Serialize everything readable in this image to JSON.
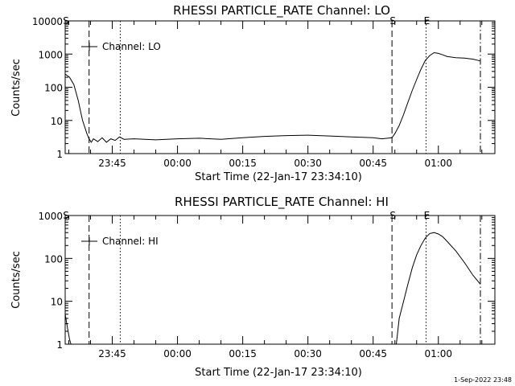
{
  "footer": {
    "timestamp": "1-Sep-2022 23:48"
  },
  "chart_data": [
    {
      "type": "line",
      "title": "RHESSI PARTICLE_RATE Channel: LO",
      "xlabel": "Start Time (22-Jan-17 23:34:10)",
      "ylabel": "Counts/sec",
      "y_scale": "log",
      "ylim": [
        1,
        10000
      ],
      "xlim": [
        "23:34:10",
        "01:13:00"
      ],
      "x_tick_labels": [
        "23:45",
        "00:00",
        "00:15",
        "00:30",
        "00:45",
        "01:00"
      ],
      "y_tick_labels": [
        "1",
        "10",
        "100",
        "1000",
        "10000"
      ],
      "legend": {
        "position": "top-left",
        "entries": [
          "Channel: LO"
        ]
      },
      "markers": [
        {
          "label": "S",
          "time": "23:34:10",
          "style": "dash-dot"
        },
        {
          "label": "",
          "time": "23:39:40",
          "style": "dashed"
        },
        {
          "label": "",
          "time": "23:46:50",
          "style": "dotted"
        },
        {
          "label": "S",
          "time": "00:49:20",
          "style": "dashed"
        },
        {
          "label": "E",
          "time": "00:57:10",
          "style": "dotted"
        },
        {
          "label": "",
          "time": "01:09:40",
          "style": "dash-dot"
        }
      ],
      "series": [
        {
          "name": "Channel: LO",
          "x": [
            "23:34:10",
            "23:35:10",
            "23:36:10",
            "23:37:10",
            "23:38:10",
            "23:39:10",
            "23:39:40",
            "23:40:10",
            "23:40:40",
            "23:41:40",
            "23:42:40",
            "23:43:40",
            "23:44:40",
            "23:45:40",
            "23:46:40",
            "23:47:40",
            "23:50:00",
            "23:55:00",
            "00:00:00",
            "00:05:00",
            "00:10:00",
            "00:15:00",
            "00:20:00",
            "00:25:00",
            "00:30:00",
            "00:35:00",
            "00:40:00",
            "00:45:00",
            "00:47:00",
            "00:49:20",
            "00:50:00",
            "00:51:00",
            "00:52:00",
            "00:53:00",
            "00:54:00",
            "00:55:00",
            "00:56:00",
            "00:57:00",
            "00:58:00",
            "00:59:00",
            "01:00:00",
            "01:01:00",
            "01:02:00",
            "01:04:00",
            "01:06:00",
            "01:08:00",
            "01:09:40"
          ],
          "y": [
            250,
            200,
            120,
            40,
            10,
            4,
            2.8,
            2.2,
            2.8,
            2.3,
            3.0,
            2.2,
            2.8,
            2.5,
            3.2,
            2.7,
            2.8,
            2.6,
            2.8,
            2.9,
            2.7,
            3.0,
            3.3,
            3.5,
            3.6,
            3.4,
            3.2,
            3.0,
            2.8,
            3.0,
            4.0,
            7,
            15,
            35,
            80,
            170,
            350,
            650,
            900,
            1100,
            1050,
            950,
            850,
            780,
            760,
            700,
            620
          ]
        }
      ]
    },
    {
      "type": "line",
      "title": "RHESSI PARTICLE_RATE Channel: HI",
      "xlabel": "Start Time (22-Jan-17 23:34:10)",
      "ylabel": "Counts/sec",
      "y_scale": "log",
      "ylim": [
        1,
        1000
      ],
      "xlim": [
        "23:34:10",
        "01:13:00"
      ],
      "x_tick_labels": [
        "23:45",
        "00:00",
        "00:15",
        "00:30",
        "00:45",
        "01:00"
      ],
      "y_tick_labels": [
        "1",
        "10",
        "100",
        "1000"
      ],
      "legend": {
        "position": "top-left",
        "entries": [
          "Channel: HI"
        ]
      },
      "markers": [
        {
          "label": "S",
          "time": "23:34:10",
          "style": "dash-dot"
        },
        {
          "label": "",
          "time": "23:39:40",
          "style": "dashed"
        },
        {
          "label": "",
          "time": "23:46:50",
          "style": "dotted"
        },
        {
          "label": "S",
          "time": "00:49:20",
          "style": "dashed"
        },
        {
          "label": "E",
          "time": "00:57:10",
          "style": "dotted"
        },
        {
          "label": "",
          "time": "01:09:40",
          "style": "dash-dot"
        }
      ],
      "series": [
        {
          "name": "Channel: HI",
          "segments": [
            {
              "x": [
                "23:34:10",
                "23:34:40",
                "23:35:10",
                "23:35:30"
              ],
              "y": [
                5,
                2.5,
                1.3,
                1
              ]
            },
            {
              "x": [
                "00:50:20",
                "00:51:00",
                "00:52:00",
                "00:53:00",
                "00:54:00",
                "00:55:00",
                "00:56:00",
                "00:57:00",
                "00:58:00",
                "00:59:00",
                "01:00:00",
                "01:01:00",
                "01:02:00",
                "01:04:00",
                "01:06:00",
                "01:08:00",
                "01:09:40"
              ],
              "y": [
                1,
                4,
                10,
                25,
                60,
                120,
                200,
                300,
                380,
                400,
                370,
                320,
                250,
                150,
                80,
                40,
                25
              ]
            }
          ]
        }
      ]
    }
  ]
}
